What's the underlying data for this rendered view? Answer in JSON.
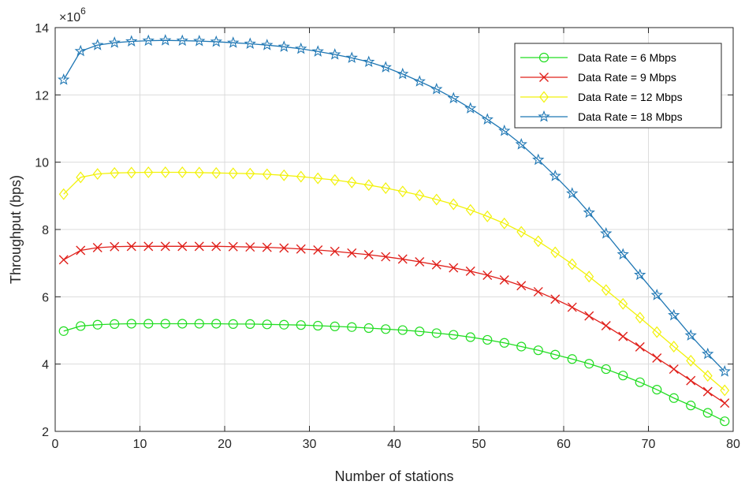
{
  "chart_data": {
    "type": "line",
    "xlabel": "Number of stations",
    "ylabel": "Throughput (bps)",
    "y_exponent_label": "×10",
    "y_exponent_power": "6",
    "xlim": [
      0,
      80
    ],
    "ylim": [
      2,
      14
    ],
    "x_ticks": [
      0,
      10,
      20,
      30,
      40,
      50,
      60,
      70,
      80
    ],
    "y_ticks": [
      2,
      4,
      6,
      8,
      10,
      12,
      14
    ],
    "x_tick_labels": [
      "0",
      "10",
      "20",
      "30",
      "40",
      "50",
      "60",
      "70",
      "80"
    ],
    "y_tick_labels": [
      "2",
      "4",
      "6",
      "8",
      "10",
      "12",
      "14"
    ],
    "grid": true,
    "legend_position": "top-right",
    "x": [
      1,
      3,
      5,
      7,
      9,
      11,
      13,
      15,
      17,
      19,
      21,
      23,
      25,
      27,
      29,
      31,
      33,
      35,
      37,
      39,
      41,
      43,
      45,
      47,
      49,
      51,
      53,
      55,
      57,
      59,
      61,
      63,
      65,
      67,
      69,
      71,
      73,
      75,
      77,
      79
    ],
    "series": [
      {
        "name": "Data Rate = 6 Mbps",
        "color": "#22dd22",
        "marker": "circle",
        "values": [
          4.98,
          5.13,
          5.17,
          5.19,
          5.2,
          5.2,
          5.2,
          5.2,
          5.2,
          5.2,
          5.19,
          5.19,
          5.18,
          5.17,
          5.16,
          5.14,
          5.12,
          5.1,
          5.07,
          5.04,
          5.01,
          4.97,
          4.92,
          4.87,
          4.8,
          4.72,
          4.63,
          4.52,
          4.41,
          4.28,
          4.15,
          4.01,
          3.85,
          3.66,
          3.46,
          3.24,
          2.99,
          2.77,
          2.55,
          2.3
        ]
      },
      {
        "name": "Data Rate = 9 Mbps",
        "color": "#e0201b",
        "marker": "x",
        "values": [
          7.1,
          7.38,
          7.46,
          7.49,
          7.5,
          7.5,
          7.5,
          7.5,
          7.5,
          7.5,
          7.49,
          7.48,
          7.47,
          7.45,
          7.42,
          7.39,
          7.35,
          7.3,
          7.25,
          7.19,
          7.12,
          7.04,
          6.95,
          6.86,
          6.76,
          6.64,
          6.5,
          6.33,
          6.15,
          5.93,
          5.69,
          5.43,
          5.14,
          4.82,
          4.51,
          4.18,
          3.85,
          3.51,
          3.18,
          2.84
        ]
      },
      {
        "name": "Data Rate = 12 Mbps",
        "color": "#f2f20a",
        "marker": "diamond",
        "values": [
          9.05,
          9.55,
          9.65,
          9.68,
          9.69,
          9.7,
          9.7,
          9.7,
          9.69,
          9.68,
          9.67,
          9.66,
          9.64,
          9.61,
          9.57,
          9.52,
          9.47,
          9.4,
          9.32,
          9.23,
          9.13,
          9.02,
          8.89,
          8.75,
          8.58,
          8.39,
          8.18,
          7.93,
          7.65,
          7.32,
          6.97,
          6.6,
          6.2,
          5.79,
          5.38,
          4.95,
          4.52,
          4.1,
          3.65,
          3.22
        ]
      },
      {
        "name": "Data Rate = 18 Mbps",
        "color": "#1f77b4",
        "marker": "star",
        "values": [
          12.45,
          13.3,
          13.48,
          13.55,
          13.59,
          13.61,
          13.62,
          13.61,
          13.6,
          13.58,
          13.55,
          13.52,
          13.48,
          13.43,
          13.37,
          13.29,
          13.2,
          13.1,
          12.98,
          12.82,
          12.62,
          12.4,
          12.17,
          11.9,
          11.6,
          11.27,
          10.93,
          10.53,
          10.07,
          9.59,
          9.07,
          8.5,
          7.88,
          7.26,
          6.65,
          6.05,
          5.45,
          4.85,
          4.3,
          3.78
        ]
      }
    ]
  }
}
